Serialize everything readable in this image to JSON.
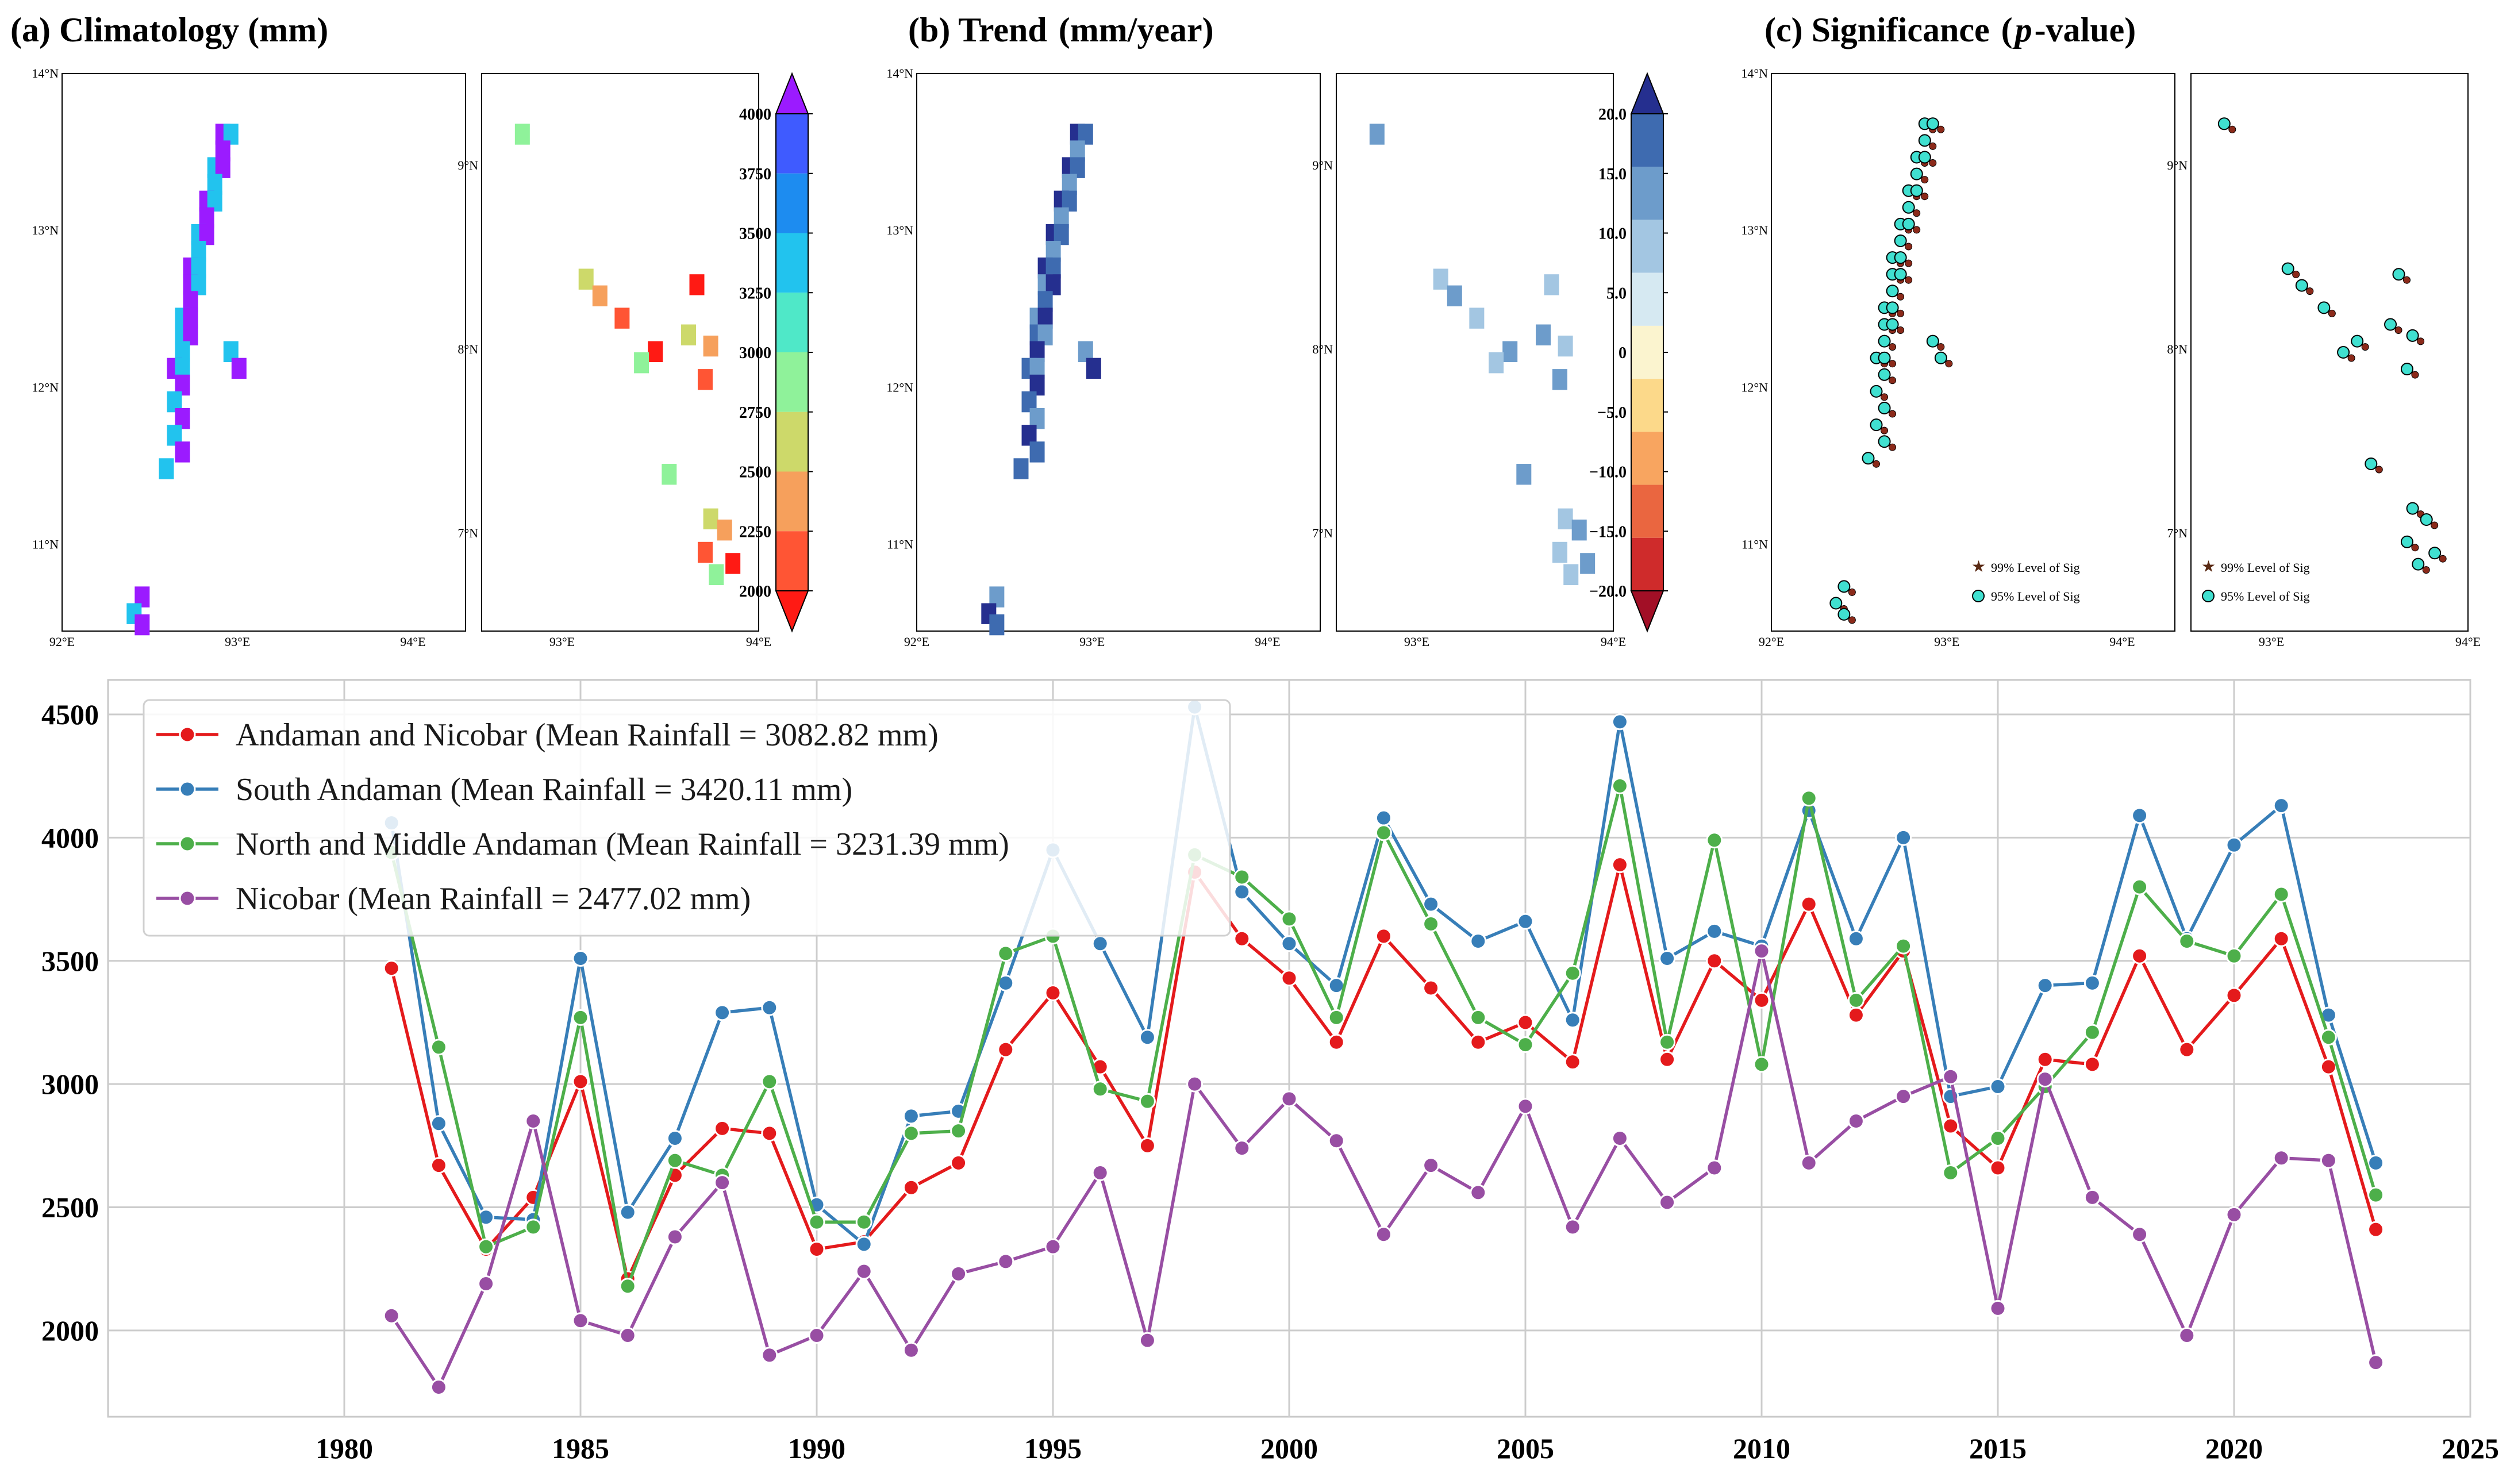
{
  "panels": {
    "a": {
      "title": "(a) Climatology (mm)"
    },
    "b": {
      "title_prefix": "(b) Trend",
      "title_unit": "(mm/year)"
    },
    "c": {
      "title_prefix": "(c) Significance",
      "p_letter": "p",
      "title_suffix": "-value)"
    }
  },
  "map_ticks": {
    "lat_left": [
      "14°N",
      "13°N",
      "12°N",
      "11°N"
    ],
    "lat_right": [
      "9°N",
      "8°N",
      "7°N"
    ],
    "lon_left": [
      "92°E",
      "93°E",
      "94°E"
    ],
    "lon_right": [
      "93°E",
      "94°E"
    ]
  },
  "colorbars": {
    "climatology": {
      "labels": [
        "4000",
        "3750",
        "3500",
        "3250",
        "3000",
        "2750",
        "2500",
        "2250",
        "2000"
      ],
      "colors": [
        "#9b1bff",
        "#3f5bff",
        "#1d8cf0",
        "#22c3ee",
        "#4fe8c8",
        "#8ff29a",
        "#cdd96a",
        "#f6a05c",
        "#ff5534",
        "#ff1a14"
      ]
    },
    "trend": {
      "labels": [
        "20.0",
        "15.0",
        "10.0",
        "5.0",
        "0",
        "−5.0",
        "−10.0",
        "−15.0",
        "−20.0"
      ],
      "colors": [
        "#252f8f",
        "#3e6bb0",
        "#6d9ccb",
        "#a3c6e2",
        "#d6e9f2",
        "#fbf4cf",
        "#fcd98a",
        "#f8a560",
        "#ea6640",
        "#cf2b2b",
        "#a20f26"
      ]
    }
  },
  "significance_legend": {
    "sig99": "99% Level of Sig",
    "sig95": "95% Level of Sig"
  },
  "chart_data": {
    "type": "line",
    "x": [
      1981,
      1982,
      1983,
      1984,
      1985,
      1986,
      1987,
      1988,
      1989,
      1990,
      1991,
      1992,
      1993,
      1994,
      1995,
      1996,
      1997,
      1998,
      1999,
      2000,
      2001,
      2002,
      2003,
      2004,
      2005,
      2006,
      2007,
      2008,
      2009,
      2010,
      2011,
      2012,
      2013,
      2014,
      2015,
      2016,
      2017,
      2018,
      2019,
      2020,
      2021,
      2022,
      2023
    ],
    "series": [
      {
        "name": "Andaman and Nicobar (Mean Rainfall = 3082.82 mm)",
        "color": "#e41a1c",
        "values": [
          3470,
          2670,
          2330,
          2540,
          3010,
          2210,
          2630,
          2820,
          2800,
          2330,
          2360,
          2580,
          2680,
          3140,
          3370,
          3070,
          2750,
          3860,
          3590,
          3430,
          3170,
          3600,
          3390,
          3170,
          3250,
          3090,
          3890,
          3100,
          3500,
          3340,
          3730,
          3280,
          3540,
          2830,
          2660,
          3100,
          3080,
          3520,
          3140,
          3360,
          3590,
          3070,
          2410
        ]
      },
      {
        "name": "South Andaman (Mean Rainfall = 3420.11 mm)",
        "color": "#377eb8",
        "values": [
          4060,
          2840,
          2460,
          2450,
          3510,
          2480,
          2780,
          3290,
          3310,
          2510,
          2350,
          2870,
          2890,
          3410,
          3950,
          3570,
          3190,
          4530,
          3780,
          3570,
          3400,
          4080,
          3730,
          3580,
          3660,
          3260,
          4470,
          3510,
          3620,
          3560,
          4110,
          3590,
          4000,
          2950,
          2990,
          3400,
          3410,
          4090,
          3590,
          3970,
          4130,
          3280,
          2680
        ]
      },
      {
        "name": "North and Middle Andaman (Mean Rainfall = 3231.39 mm)",
        "color": "#4daf4a",
        "values": [
          3940,
          3150,
          2340,
          2420,
          3270,
          2180,
          2690,
          2630,
          3010,
          2440,
          2440,
          2800,
          2810,
          3530,
          3600,
          2980,
          2930,
          3930,
          3840,
          3670,
          3270,
          4020,
          3650,
          3270,
          3160,
          3450,
          4210,
          3170,
          3990,
          3080,
          4160,
          3340,
          3560,
          2640,
          2780,
          2990,
          3210,
          3800,
          3580,
          3520,
          3770,
          3190,
          2550
        ]
      },
      {
        "name": "Nicobar (Mean Rainfall = 2477.02 mm)",
        "color": "#984ea3",
        "values": [
          2060,
          1770,
          2190,
          2850,
          2040,
          1980,
          2380,
          2600,
          1900,
          1980,
          2240,
          1920,
          2230,
          2280,
          2340,
          2640,
          1960,
          3000,
          2740,
          2940,
          2770,
          2390,
          2670,
          2560,
          2910,
          2420,
          2780,
          2520,
          2660,
          3540,
          2680,
          2850,
          2950,
          3030,
          2090,
          3020,
          2540,
          2390,
          1980,
          2470,
          2700,
          2690,
          1870
        ]
      }
    ],
    "xlim": [
      1975,
      2025
    ],
    "ylim": [
      1650,
      4640
    ],
    "xticks": [
      "1980",
      "1985",
      "1990",
      "1995",
      "2000",
      "2005",
      "2010",
      "2015",
      "2020",
      "2025"
    ],
    "yticks": [
      "2000",
      "2500",
      "3000",
      "3500",
      "4000",
      "4500"
    ],
    "grid": true,
    "legend": "top-left"
  }
}
